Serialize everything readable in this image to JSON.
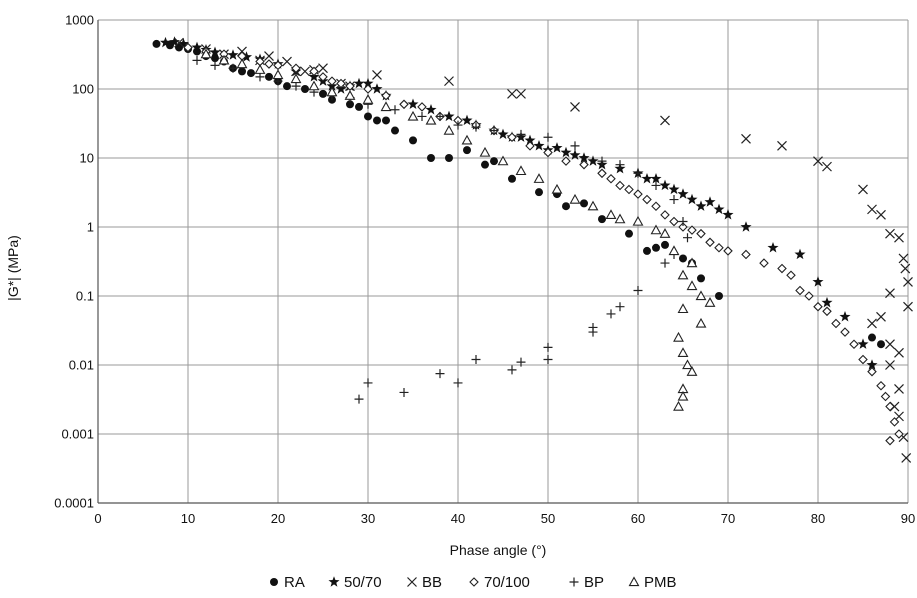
{
  "chart_data": {
    "type": "scatter",
    "title": "",
    "xlabel": "Phase angle (°)",
    "ylabel": "|G*| (MPa)",
    "xlim": [
      0,
      90
    ],
    "ylim": [
      0.0001,
      1000
    ],
    "yscale": "log",
    "grid": true,
    "legend_position": "bottom",
    "x_ticks": [
      "0",
      "10",
      "20",
      "30",
      "40",
      "50",
      "60",
      "70",
      "80",
      "90"
    ],
    "y_ticks": [
      "0.0001",
      "0.001",
      "0.01",
      "0.1",
      "1",
      "10",
      "100",
      "1000"
    ],
    "series": [
      {
        "name": "RA",
        "marker": "circle",
        "marker_symbol": "●",
        "points": [
          [
            6.5,
            450
          ],
          [
            8,
            430
          ],
          [
            9,
            400
          ],
          [
            10,
            380
          ],
          [
            11,
            350
          ],
          [
            12,
            300
          ],
          [
            13,
            280
          ],
          [
            14,
            250
          ],
          [
            15,
            200
          ],
          [
            16,
            180
          ],
          [
            17,
            170
          ],
          [
            19,
            150
          ],
          [
            20,
            130
          ],
          [
            21,
            110
          ],
          [
            23,
            100
          ],
          [
            25,
            85
          ],
          [
            26,
            70
          ],
          [
            28,
            60
          ],
          [
            29,
            55
          ],
          [
            30,
            40
          ],
          [
            31,
            35
          ],
          [
            32,
            35
          ],
          [
            33,
            25
          ],
          [
            35,
            18
          ],
          [
            37,
            10
          ],
          [
            39,
            10
          ],
          [
            41,
            13
          ],
          [
            43,
            8
          ],
          [
            44,
            9
          ],
          [
            46,
            5
          ],
          [
            49,
            3.2
          ],
          [
            51,
            3
          ],
          [
            52,
            2
          ],
          [
            54,
            2.2
          ],
          [
            56,
            1.3
          ],
          [
            59,
            0.8
          ],
          [
            61,
            0.45
          ],
          [
            62,
            0.5
          ],
          [
            63,
            0.55
          ],
          [
            65,
            0.35
          ],
          [
            66,
            0.3
          ],
          [
            67,
            0.18
          ],
          [
            69,
            0.1
          ],
          [
            86,
            0.025
          ],
          [
            87,
            0.02
          ]
        ]
      },
      {
        "name": "50/70",
        "marker": "star",
        "marker_symbol": "★",
        "points": [
          [
            7.5,
            470
          ],
          [
            8.5,
            480
          ],
          [
            9.5,
            450
          ],
          [
            11,
            400
          ],
          [
            12,
            370
          ],
          [
            13,
            340
          ],
          [
            15,
            310
          ],
          [
            16.5,
            290
          ],
          [
            18,
            270
          ],
          [
            20,
            230
          ],
          [
            22,
            180
          ],
          [
            24,
            150
          ],
          [
            25,
            130
          ],
          [
            26,
            110
          ],
          [
            27,
            100
          ],
          [
            28,
            110
          ],
          [
            29,
            120
          ],
          [
            30,
            120
          ],
          [
            31,
            100
          ],
          [
            32,
            80
          ],
          [
            35,
            60
          ],
          [
            37,
            50
          ],
          [
            39,
            40
          ],
          [
            41,
            35
          ],
          [
            42,
            30
          ],
          [
            44,
            25
          ],
          [
            45,
            22
          ],
          [
            46,
            20
          ],
          [
            47,
            20
          ],
          [
            48,
            18
          ],
          [
            49,
            15
          ],
          [
            50,
            13
          ],
          [
            51,
            14
          ],
          [
            52,
            12
          ],
          [
            53,
            11
          ],
          [
            54,
            10
          ],
          [
            55,
            9
          ],
          [
            56,
            8
          ],
          [
            58,
            7
          ],
          [
            60,
            6
          ],
          [
            61,
            5
          ],
          [
            62,
            5
          ],
          [
            63,
            4
          ],
          [
            64,
            3.5
          ],
          [
            65,
            3
          ],
          [
            66,
            2.5
          ],
          [
            67,
            2
          ],
          [
            68,
            2.3
          ],
          [
            69,
            1.8
          ],
          [
            70,
            1.5
          ],
          [
            72,
            1
          ],
          [
            75,
            0.5
          ],
          [
            78,
            0.4
          ],
          [
            80,
            0.16
          ],
          [
            81,
            0.08
          ],
          [
            83,
            0.05
          ],
          [
            85,
            0.02
          ],
          [
            86,
            0.01
          ]
        ]
      },
      {
        "name": "BB",
        "marker": "x",
        "marker_symbol": "✕",
        "points": [
          [
            9,
            470
          ],
          [
            12,
            380
          ],
          [
            14,
            320
          ],
          [
            16,
            350
          ],
          [
            18,
            260
          ],
          [
            19,
            300
          ],
          [
            21,
            250
          ],
          [
            22,
            180
          ],
          [
            23,
            180
          ],
          [
            24,
            190
          ],
          [
            25,
            200
          ],
          [
            27,
            120
          ],
          [
            28,
            110
          ],
          [
            31,
            160
          ],
          [
            39,
            130
          ],
          [
            46,
            85
          ],
          [
            47,
            85
          ],
          [
            53,
            55
          ],
          [
            63,
            35
          ],
          [
            72,
            19
          ],
          [
            76,
            15
          ],
          [
            80,
            9
          ],
          [
            81,
            7.5
          ],
          [
            85,
            3.5
          ],
          [
            86,
            1.8
          ],
          [
            87,
            1.5
          ],
          [
            88,
            0.8
          ],
          [
            89,
            0.7
          ],
          [
            89.5,
            0.35
          ],
          [
            89.7,
            0.25
          ],
          [
            90,
            0.16
          ],
          [
            90,
            0.07
          ],
          [
            88,
            0.11
          ],
          [
            87,
            0.05
          ],
          [
            86,
            0.04
          ],
          [
            88,
            0.02
          ],
          [
            89,
            0.015
          ],
          [
            88,
            0.01
          ],
          [
            89,
            0.0045
          ],
          [
            88.5,
            0.0025
          ],
          [
            89,
            0.0018
          ],
          [
            89.5,
            0.0009
          ],
          [
            89.8,
            0.00045
          ]
        ]
      },
      {
        "name": "70/100",
        "marker": "diamond",
        "marker_symbol": "◇",
        "points": [
          [
            10,
            400
          ],
          [
            12,
            350
          ],
          [
            14,
            320
          ],
          [
            16,
            300
          ],
          [
            18,
            250
          ],
          [
            19,
            230
          ],
          [
            20,
            220
          ],
          [
            22,
            200
          ],
          [
            24,
            180
          ],
          [
            25,
            150
          ],
          [
            26,
            130
          ],
          [
            27,
            120
          ],
          [
            28,
            110
          ],
          [
            30,
            100
          ],
          [
            32,
            80
          ],
          [
            34,
            60
          ],
          [
            36,
            55
          ],
          [
            38,
            40
          ],
          [
            40,
            35
          ],
          [
            42,
            30
          ],
          [
            44,
            25
          ],
          [
            46,
            20
          ],
          [
            48,
            15
          ],
          [
            50,
            12
          ],
          [
            52,
            9
          ],
          [
            54,
            8
          ],
          [
            56,
            6
          ],
          [
            57,
            5
          ],
          [
            58,
            4
          ],
          [
            59,
            3.5
          ],
          [
            60,
            3
          ],
          [
            61,
            2.5
          ],
          [
            62,
            2
          ],
          [
            63,
            1.5
          ],
          [
            64,
            1.2
          ],
          [
            65,
            1
          ],
          [
            66,
            0.9
          ],
          [
            67,
            0.8
          ],
          [
            68,
            0.6
          ],
          [
            69,
            0.5
          ],
          [
            70,
            0.45
          ],
          [
            72,
            0.4
          ],
          [
            74,
            0.3
          ],
          [
            76,
            0.25
          ],
          [
            77,
            0.2
          ],
          [
            78,
            0.12
          ],
          [
            79,
            0.1
          ],
          [
            80,
            0.07
          ],
          [
            81,
            0.06
          ],
          [
            82,
            0.04
          ],
          [
            83,
            0.03
          ],
          [
            84,
            0.02
          ],
          [
            85,
            0.012
          ],
          [
            86,
            0.008
          ],
          [
            87,
            0.005
          ],
          [
            87.5,
            0.0035
          ],
          [
            88,
            0.0025
          ],
          [
            88.5,
            0.0015
          ],
          [
            89,
            0.001
          ],
          [
            88,
            0.0008
          ]
        ]
      },
      {
        "name": "BP",
        "marker": "plus",
        "marker_symbol": "+",
        "points": [
          [
            11,
            260
          ],
          [
            13,
            220
          ],
          [
            15,
            200
          ],
          [
            18,
            150
          ],
          [
            20,
            130
          ],
          [
            22,
            110
          ],
          [
            24,
            90
          ],
          [
            26,
            80
          ],
          [
            28,
            75
          ],
          [
            30,
            60
          ],
          [
            33,
            50
          ],
          [
            36,
            40
          ],
          [
            38,
            40
          ],
          [
            40,
            30
          ],
          [
            42,
            28
          ],
          [
            44,
            25
          ],
          [
            47,
            22
          ],
          [
            50,
            20
          ],
          [
            53,
            15
          ],
          [
            56,
            9
          ],
          [
            58,
            8
          ],
          [
            60,
            6
          ],
          [
            62,
            4
          ],
          [
            64,
            2.5
          ],
          [
            65,
            1.2
          ],
          [
            65.5,
            0.7
          ],
          [
            64,
            0.4
          ],
          [
            63,
            0.3
          ],
          [
            60,
            0.12
          ],
          [
            58,
            0.07
          ],
          [
            57,
            0.055
          ],
          [
            55,
            0.035
          ],
          [
            55,
            0.03
          ],
          [
            50,
            0.018
          ],
          [
            50,
            0.012
          ],
          [
            47,
            0.011
          ],
          [
            46,
            0.0085
          ],
          [
            42,
            0.012
          ],
          [
            40,
            0.0055
          ],
          [
            38,
            0.0075
          ],
          [
            34,
            0.004
          ],
          [
            30,
            0.0055
          ],
          [
            29,
            0.0032
          ]
        ]
      },
      {
        "name": "PMB",
        "marker": "triangle",
        "marker_symbol": "△",
        "points": [
          [
            12,
            320
          ],
          [
            14,
            260
          ],
          [
            16,
            230
          ],
          [
            18,
            190
          ],
          [
            20,
            160
          ],
          [
            22,
            140
          ],
          [
            24,
            110
          ],
          [
            26,
            90
          ],
          [
            28,
            80
          ],
          [
            30,
            70
          ],
          [
            32,
            55
          ],
          [
            35,
            40
          ],
          [
            37,
            35
          ],
          [
            39,
            25
          ],
          [
            41,
            18
          ],
          [
            43,
            12
          ],
          [
            45,
            9
          ],
          [
            47,
            6.5
          ],
          [
            49,
            5
          ],
          [
            51,
            3.5
          ],
          [
            53,
            2.5
          ],
          [
            55,
            2
          ],
          [
            57,
            1.5
          ],
          [
            58,
            1.3
          ],
          [
            60,
            1.2
          ],
          [
            62,
            0.9
          ],
          [
            63,
            0.8
          ],
          [
            64,
            0.45
          ],
          [
            65,
            0.2
          ],
          [
            66,
            0.14
          ],
          [
            67,
            0.1
          ],
          [
            68,
            0.08
          ],
          [
            64.5,
            0.025
          ],
          [
            65,
            0.015
          ],
          [
            65.5,
            0.01
          ],
          [
            66,
            0.008
          ],
          [
            65,
            0.0045
          ],
          [
            65,
            0.0035
          ],
          [
            64.5,
            0.0025
          ],
          [
            65,
            0.065
          ],
          [
            66,
            0.3
          ],
          [
            67,
            0.04
          ]
        ]
      }
    ]
  }
}
